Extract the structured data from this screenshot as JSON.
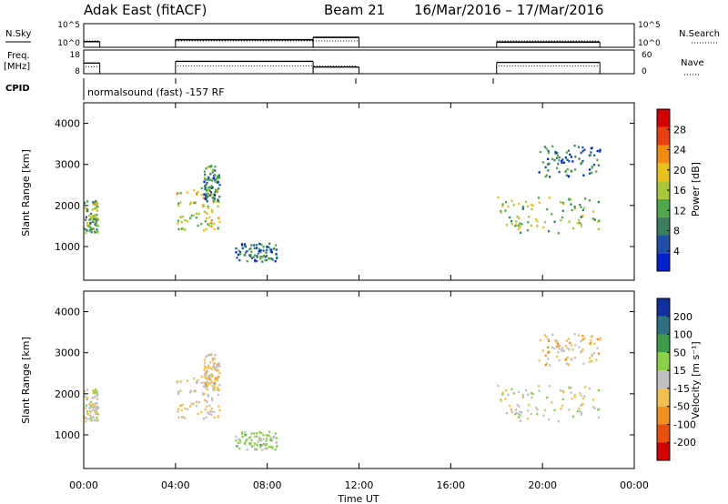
{
  "header": {
    "station": "Adak East (fitACF)",
    "beam": "Beam 21",
    "dates": "16/Mar/2016 – 17/Mar/2016"
  },
  "panels": {
    "nsky": {
      "left_label": "N.Sky",
      "left_ticks": [
        "10^5",
        "10^0"
      ],
      "right_ticks": [
        "10^5",
        "10^0"
      ],
      "right_label": "N.Search"
    },
    "freq": {
      "left_label_1": "Freq.",
      "left_label_2": "[MHz]",
      "left_ticks": [
        "18",
        "8"
      ],
      "right_ticks": [
        "60",
        "0"
      ],
      "right_label": "Nave"
    },
    "cpid": {
      "label": "CPID",
      "text": "normalsound (fast) -157 RF"
    }
  },
  "x_axis": {
    "label": "Time UT",
    "tick_labels": [
      "00:00",
      "04:00",
      "08:00",
      "12:00",
      "16:00",
      "20:00",
      "00:00"
    ]
  },
  "power_panel": {
    "ylabel": "Slant Range [km]",
    "y_ticks": [
      "4000",
      "3000",
      "2000",
      "1000"
    ],
    "cbar_label": "Power [dB]",
    "cbar_ticks": [
      "28",
      "24",
      "20",
      "16",
      "12",
      "8",
      "4"
    ],
    "cbar_colors": [
      "#0022cc",
      "#1f4fa8",
      "#3b7f5f",
      "#4fa84a",
      "#a8c83a",
      "#e8c020",
      "#f08a10",
      "#e84010",
      "#d40000"
    ]
  },
  "velocity_panel": {
    "ylabel": "Slant Range [km]",
    "y_ticks": [
      "4000",
      "3000",
      "2000",
      "1000"
    ],
    "cbar_label": "Velocity [m s⁻¹]",
    "cbar_ticks": [
      "200",
      "100",
      "50",
      "15",
      "-15",
      "-50",
      "-100",
      "-200"
    ],
    "cbar_colors": [
      "#1030a0",
      "#2e6f80",
      "#3c9a4a",
      "#8ad04a",
      "#c0c0c0",
      "#f0c050",
      "#f09020",
      "#e85010",
      "#d40000"
    ]
  },
  "chart_data": {
    "type": "heatmap",
    "x_range_hours": [
      0,
      24
    ],
    "y_range_km": [
      180,
      4500
    ],
    "operating_intervals_hours": [
      [
        0.0,
        0.7
      ],
      [
        4.0,
        12.0
      ],
      [
        18.0,
        22.5
      ]
    ],
    "nsky_levels": [
      [
        0.0,
        0.7,
        1.2
      ],
      [
        4.0,
        10.0,
        1.6
      ],
      [
        10.0,
        12.0,
        2.1
      ],
      [
        18.0,
        22.5,
        1.1
      ]
    ],
    "freq_mhz": [
      [
        0.0,
        0.7,
        12.5
      ],
      [
        4.0,
        10.0,
        13.2
      ],
      [
        10.0,
        12.0,
        10.8
      ],
      [
        18.0,
        22.5,
        12.8
      ]
    ],
    "nave": [
      [
        0.0,
        0.7,
        18
      ],
      [
        4.0,
        12.0,
        20
      ],
      [
        18.0,
        22.5,
        20
      ]
    ],
    "scatter_regions": [
      {
        "t": [
          0.0,
          0.6
        ],
        "r": [
          1350,
          2150
        ],
        "power_db": 12,
        "velocity": -15
      },
      {
        "t": [
          4.0,
          5.9
        ],
        "r": [
          1400,
          2500
        ],
        "power_db": 16,
        "velocity": -30
      },
      {
        "t": [
          5.2,
          5.9
        ],
        "r": [
          2100,
          3000
        ],
        "power_db": 8,
        "velocity": -40
      },
      {
        "t": [
          6.6,
          8.4
        ],
        "r": [
          650,
          1100
        ],
        "power_db": 6,
        "velocity": 40
      },
      {
        "t": [
          18.0,
          22.5
        ],
        "r": [
          1350,
          2250
        ],
        "power_db": 14,
        "velocity": -10
      },
      {
        "t": [
          19.8,
          22.5
        ],
        "r": [
          2700,
          3500
        ],
        "power_db": 6,
        "velocity": -60
      }
    ],
    "power_range_db": [
      0,
      31
    ],
    "velocity_range": [
      -250,
      250
    ]
  }
}
